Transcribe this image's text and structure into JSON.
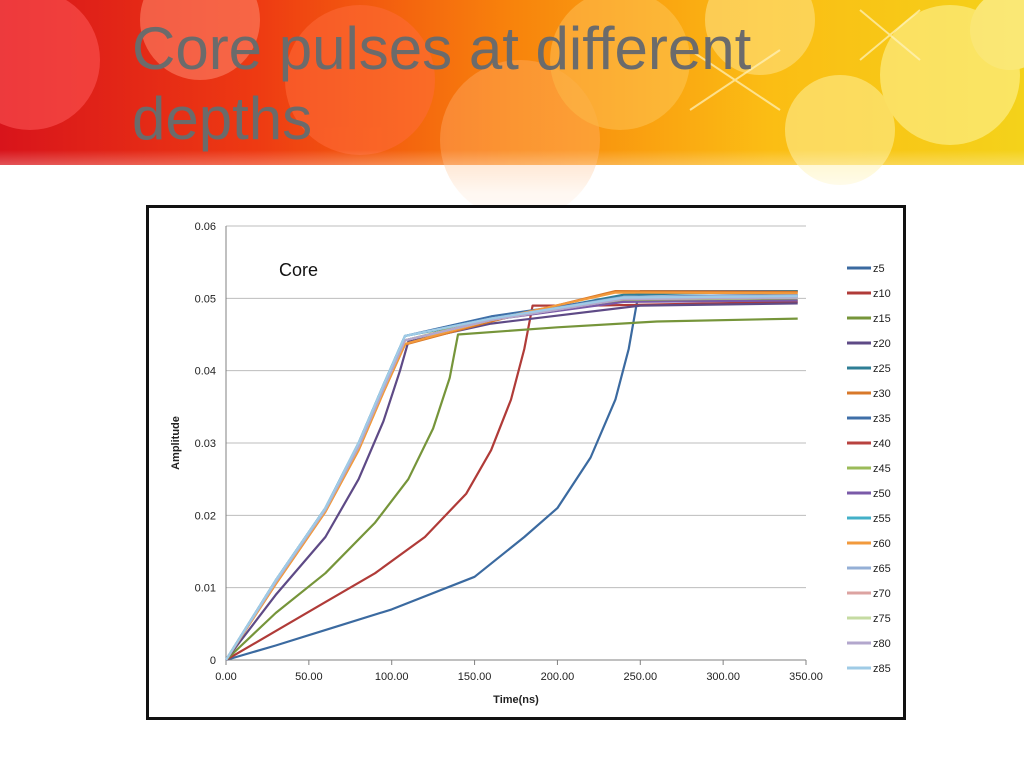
{
  "slide": {
    "title": "Core pulses at different depths"
  },
  "chart_data": {
    "type": "line",
    "title": "",
    "annotation": "Core",
    "xlabel": "Time(ns)",
    "ylabel": "Amplitude",
    "xlim": [
      0,
      350
    ],
    "ylim": [
      0,
      0.06
    ],
    "x_ticks": [
      "0.00",
      "50.00",
      "100.00",
      "150.00",
      "200.00",
      "250.00",
      "300.00",
      "350.00"
    ],
    "y_ticks": [
      "0",
      "0.01",
      "0.02",
      "0.03",
      "0.04",
      "0.05",
      "0.06"
    ],
    "grid": "horizontal",
    "legend_position": "right",
    "series": [
      {
        "name": "z5",
        "color": "#3b6aa0",
        "points": [
          [
            0,
            0
          ],
          [
            30,
            0.002
          ],
          [
            65,
            0.0045
          ],
          [
            100,
            0.007
          ],
          [
            150,
            0.0115
          ],
          [
            180,
            0.017
          ],
          [
            200,
            0.021
          ],
          [
            220,
            0.028
          ],
          [
            235,
            0.036
          ],
          [
            243,
            0.043
          ],
          [
            248,
            0.0495
          ],
          [
            250,
            0.051
          ],
          [
            345,
            0.051
          ]
        ]
      },
      {
        "name": "z10",
        "color": "#b03b38",
        "points": [
          [
            0,
            0
          ],
          [
            30,
            0.004
          ],
          [
            60,
            0.008
          ],
          [
            90,
            0.012
          ],
          [
            120,
            0.017
          ],
          [
            145,
            0.023
          ],
          [
            160,
            0.029
          ],
          [
            172,
            0.036
          ],
          [
            180,
            0.043
          ],
          [
            185,
            0.049
          ],
          [
            220,
            0.049
          ],
          [
            345,
            0.0495
          ]
        ]
      },
      {
        "name": "z15",
        "color": "#76953a",
        "points": [
          [
            0,
            0
          ],
          [
            30,
            0.0065
          ],
          [
            60,
            0.012
          ],
          [
            90,
            0.019
          ],
          [
            110,
            0.025
          ],
          [
            125,
            0.032
          ],
          [
            135,
            0.039
          ],
          [
            140,
            0.045
          ],
          [
            200,
            0.046
          ],
          [
            260,
            0.0468
          ],
          [
            345,
            0.0472
          ]
        ]
      },
      {
        "name": "z20",
        "color": "#5e4a86",
        "points": [
          [
            0,
            0
          ],
          [
            30,
            0.009
          ],
          [
            60,
            0.017
          ],
          [
            80,
            0.025
          ],
          [
            95,
            0.033
          ],
          [
            105,
            0.04
          ],
          [
            110,
            0.044
          ],
          [
            160,
            0.0465
          ],
          [
            250,
            0.049
          ],
          [
            345,
            0.0493
          ]
        ]
      },
      {
        "name": "z25",
        "color": "#2f7e95",
        "points": [
          [
            0,
            0
          ],
          [
            30,
            0.011
          ],
          [
            60,
            0.021
          ],
          [
            80,
            0.03
          ],
          [
            95,
            0.038
          ],
          [
            108,
            0.0448
          ],
          [
            160,
            0.047
          ],
          [
            240,
            0.0505
          ],
          [
            345,
            0.051
          ]
        ]
      },
      {
        "name": "z30",
        "color": "#d8782a",
        "points": [
          [
            0,
            0
          ],
          [
            30,
            0.0105
          ],
          [
            60,
            0.0205
          ],
          [
            80,
            0.029
          ],
          [
            95,
            0.037
          ],
          [
            108,
            0.0436
          ],
          [
            160,
            0.0468
          ],
          [
            235,
            0.051
          ],
          [
            345,
            0.0509
          ]
        ]
      },
      {
        "name": "z35",
        "color": "#3f6fa8",
        "points": [
          [
            0,
            0
          ],
          [
            30,
            0.011
          ],
          [
            60,
            0.021
          ],
          [
            80,
            0.03
          ],
          [
            95,
            0.038
          ],
          [
            108,
            0.0448
          ],
          [
            160,
            0.0475
          ],
          [
            240,
            0.0502
          ],
          [
            345,
            0.0505
          ]
        ]
      },
      {
        "name": "z40",
        "color": "#b8423f",
        "points": [
          [
            0,
            0
          ],
          [
            30,
            0.0108
          ],
          [
            60,
            0.0208
          ],
          [
            80,
            0.0295
          ],
          [
            95,
            0.0375
          ],
          [
            108,
            0.0442
          ],
          [
            160,
            0.047
          ],
          [
            240,
            0.0498
          ],
          [
            345,
            0.0502
          ]
        ]
      },
      {
        "name": "z45",
        "color": "#9bbb59",
        "points": [
          [
            0,
            0
          ],
          [
            30,
            0.0108
          ],
          [
            60,
            0.0208
          ],
          [
            80,
            0.0295
          ],
          [
            95,
            0.0375
          ],
          [
            108,
            0.0442
          ],
          [
            160,
            0.0472
          ],
          [
            240,
            0.0496
          ],
          [
            345,
            0.0498
          ]
        ]
      },
      {
        "name": "z50",
        "color": "#7a5aa8",
        "points": [
          [
            0,
            0
          ],
          [
            30,
            0.0108
          ],
          [
            60,
            0.0208
          ],
          [
            80,
            0.0295
          ],
          [
            95,
            0.0375
          ],
          [
            108,
            0.0442
          ],
          [
            160,
            0.047
          ],
          [
            240,
            0.0495
          ],
          [
            345,
            0.0497
          ]
        ]
      },
      {
        "name": "z55",
        "color": "#43b0c8",
        "points": [
          [
            0,
            0
          ],
          [
            30,
            0.011
          ],
          [
            60,
            0.021
          ],
          [
            80,
            0.03
          ],
          [
            95,
            0.038
          ],
          [
            108,
            0.0448
          ],
          [
            160,
            0.0472
          ],
          [
            240,
            0.05
          ],
          [
            345,
            0.0503
          ]
        ]
      },
      {
        "name": "z60",
        "color": "#f29a3c",
        "points": [
          [
            0,
            0
          ],
          [
            30,
            0.0105
          ],
          [
            60,
            0.0205
          ],
          [
            80,
            0.029
          ],
          [
            95,
            0.037
          ],
          [
            108,
            0.0437
          ],
          [
            160,
            0.047
          ],
          [
            235,
            0.0508
          ],
          [
            345,
            0.0507
          ]
        ]
      },
      {
        "name": "z65",
        "color": "#94afd6",
        "points": [
          [
            0,
            0
          ],
          [
            30,
            0.011
          ],
          [
            60,
            0.021
          ],
          [
            80,
            0.03
          ],
          [
            95,
            0.038
          ],
          [
            108,
            0.0448
          ],
          [
            160,
            0.0472
          ],
          [
            240,
            0.0502
          ],
          [
            345,
            0.0504
          ]
        ]
      },
      {
        "name": "z70",
        "color": "#dca3a1",
        "points": [
          [
            0,
            0
          ],
          [
            30,
            0.0108
          ],
          [
            60,
            0.0208
          ],
          [
            80,
            0.0295
          ],
          [
            95,
            0.0375
          ],
          [
            108,
            0.0442
          ],
          [
            160,
            0.047
          ],
          [
            240,
            0.05
          ],
          [
            345,
            0.0502
          ]
        ]
      },
      {
        "name": "z75",
        "color": "#c5dba2",
        "points": [
          [
            0,
            0
          ],
          [
            30,
            0.0108
          ],
          [
            60,
            0.0208
          ],
          [
            80,
            0.0295
          ],
          [
            95,
            0.0375
          ],
          [
            108,
            0.0442
          ],
          [
            160,
            0.047
          ],
          [
            240,
            0.0499
          ],
          [
            345,
            0.0501
          ]
        ]
      },
      {
        "name": "z80",
        "color": "#b3a7cd",
        "points": [
          [
            0,
            0
          ],
          [
            30,
            0.0108
          ],
          [
            60,
            0.0208
          ],
          [
            80,
            0.0295
          ],
          [
            95,
            0.0375
          ],
          [
            108,
            0.0442
          ],
          [
            160,
            0.047
          ],
          [
            240,
            0.0499
          ],
          [
            345,
            0.0501
          ]
        ]
      },
      {
        "name": "z85",
        "color": "#9fcbe6",
        "points": [
          [
            0,
            0
          ],
          [
            30,
            0.011
          ],
          [
            60,
            0.021
          ],
          [
            80,
            0.03
          ],
          [
            95,
            0.038
          ],
          [
            108,
            0.0448
          ],
          [
            160,
            0.0472
          ],
          [
            240,
            0.0501
          ],
          [
            345,
            0.0503
          ]
        ]
      }
    ]
  }
}
